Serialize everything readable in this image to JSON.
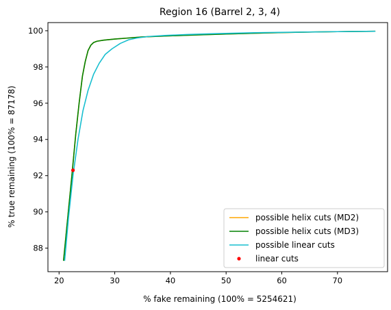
{
  "chart_data": {
    "type": "line",
    "title": "Region 16 (Barrel 2, 3, 4)",
    "xlabel": "% fake remaining (100% = 5254621)",
    "ylabel": "% true remaining (100% = 87178)",
    "xlim": [
      18.0,
      79.0
    ],
    "ylim": [
      86.7,
      100.45
    ],
    "xticks": [
      20,
      30,
      40,
      50,
      60,
      70
    ],
    "yticks": [
      88,
      90,
      92,
      94,
      96,
      98,
      100
    ],
    "grid": false,
    "legend_position": "lower-right",
    "series": [
      {
        "name": "possible helix cuts (MD2)",
        "color": "#ffa500",
        "kind": "line",
        "x": [
          20.8,
          21.5,
          22.3,
          23.0,
          23.6,
          24.2,
          24.7,
          25.2,
          25.7,
          26.2,
          26.8,
          28.0,
          30.0,
          32.5,
          35.0,
          40.0,
          45.0,
          50.0,
          55.0,
          60.0,
          65.0,
          70.0,
          76.8
        ],
        "y": [
          87.3,
          89.5,
          92.0,
          94.3,
          96.0,
          97.5,
          98.3,
          98.9,
          99.2,
          99.35,
          99.42,
          99.48,
          99.54,
          99.6,
          99.66,
          99.72,
          99.77,
          99.82,
          99.86,
          99.9,
          99.93,
          99.95,
          99.97
        ]
      },
      {
        "name": "possible helix cuts (MD3)",
        "color": "#008000",
        "kind": "line",
        "x": [
          20.8,
          21.5,
          22.3,
          23.0,
          23.6,
          24.2,
          24.7,
          25.2,
          25.7,
          26.2,
          26.8,
          28.0,
          30.0,
          32.5,
          35.0,
          40.0,
          45.0,
          50.0,
          55.0,
          60.0,
          65.0,
          70.0,
          76.8
        ],
        "y": [
          87.3,
          89.5,
          92.0,
          94.3,
          96.0,
          97.5,
          98.3,
          98.9,
          99.2,
          99.35,
          99.42,
          99.48,
          99.54,
          99.6,
          99.66,
          99.72,
          99.77,
          99.82,
          99.86,
          99.9,
          99.93,
          99.95,
          99.97
        ]
      },
      {
        "name": "possible linear cuts",
        "color": "#17becf",
        "kind": "line",
        "x": [
          21.0,
          21.7,
          22.5,
          23.4,
          24.3,
          25.2,
          26.2,
          27.2,
          28.3,
          29.5,
          31.0,
          32.5,
          34.0,
          36.0,
          39.0,
          43.0,
          48.0,
          55.0,
          62.0,
          70.0,
          76.8
        ],
        "y": [
          87.3,
          89.7,
          92.0,
          94.0,
          95.6,
          96.7,
          97.6,
          98.2,
          98.7,
          99.0,
          99.3,
          99.5,
          99.6,
          99.68,
          99.74,
          99.79,
          99.84,
          99.89,
          99.92,
          99.95,
          99.97
        ]
      },
      {
        "name": "linear cuts",
        "color": "#ff0000",
        "kind": "scatter",
        "x": [
          22.5
        ],
        "y": [
          92.3
        ]
      }
    ]
  }
}
